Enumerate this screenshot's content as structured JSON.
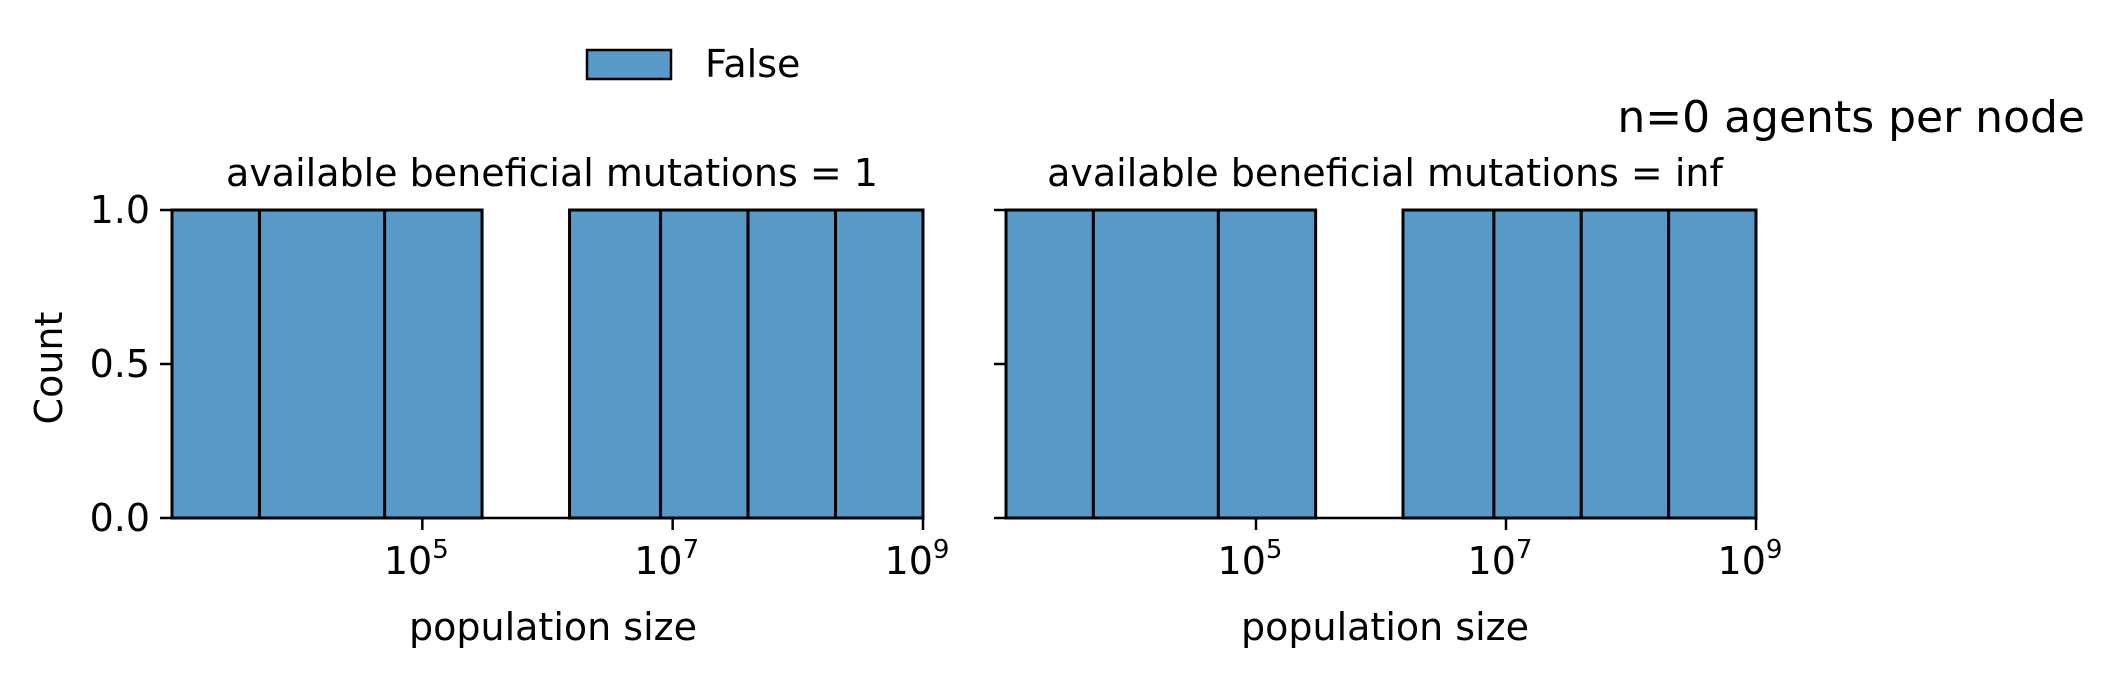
{
  "figure": {
    "suptitle": "n=0 agents per node",
    "legend": {
      "label": "False",
      "color": "#5799c7",
      "placement": "top-left"
    }
  },
  "chart_data": [
    {
      "type": "bar",
      "title": "available beneficial mutations = 1",
      "xlabel": "population size",
      "ylabel": "Count",
      "xscale": "log",
      "xlim": [
        1000,
        1000000000
      ],
      "ylim": [
        0,
        1
      ],
      "yticks": [
        "0.0",
        "0.5",
        "1.0"
      ],
      "xticks": [
        {
          "base": "10",
          "exp": "5",
          "value": 100000
        },
        {
          "base": "10",
          "exp": "7",
          "value": 10000000
        },
        {
          "base": "10",
          "exp": "9",
          "value": 1000000000
        }
      ],
      "bins": [
        {
          "from": 1000,
          "to": 5000,
          "count": 1
        },
        {
          "from": 5000,
          "to": 50000,
          "count": 1
        },
        {
          "from": 50000,
          "to": 300000,
          "count": 1
        },
        {
          "from": 300000,
          "to": 1500000,
          "count": 0
        },
        {
          "from": 1500000,
          "to": 8000000,
          "count": 1
        },
        {
          "from": 8000000,
          "to": 40000000,
          "count": 1
        },
        {
          "from": 40000000,
          "to": 200000000,
          "count": 1
        },
        {
          "from": 200000000,
          "to": 1000000000,
          "count": 1
        }
      ],
      "series": [
        {
          "name": "False",
          "color": "#5799c7"
        }
      ]
    },
    {
      "type": "bar",
      "title": "available beneficial mutations = inf",
      "xlabel": "population size",
      "ylabel": "",
      "xscale": "log",
      "xlim": [
        1000,
        1000000000
      ],
      "ylim": [
        0,
        1
      ],
      "yticks": [
        "",
        "",
        ""
      ],
      "xticks": [
        {
          "base": "10",
          "exp": "5",
          "value": 100000
        },
        {
          "base": "10",
          "exp": "7",
          "value": 10000000
        },
        {
          "base": "10",
          "exp": "9",
          "value": 1000000000
        }
      ],
      "bins": [
        {
          "from": 1000,
          "to": 5000,
          "count": 1
        },
        {
          "from": 5000,
          "to": 50000,
          "count": 1
        },
        {
          "from": 50000,
          "to": 300000,
          "count": 1
        },
        {
          "from": 300000,
          "to": 1500000,
          "count": 0
        },
        {
          "from": 1500000,
          "to": 8000000,
          "count": 1
        },
        {
          "from": 8000000,
          "to": 40000000,
          "count": 1
        },
        {
          "from": 40000000,
          "to": 200000000,
          "count": 1
        },
        {
          "from": 200000000,
          "to": 1000000000,
          "count": 1
        }
      ],
      "series": [
        {
          "name": "False",
          "color": "#5799c7"
        }
      ]
    }
  ]
}
